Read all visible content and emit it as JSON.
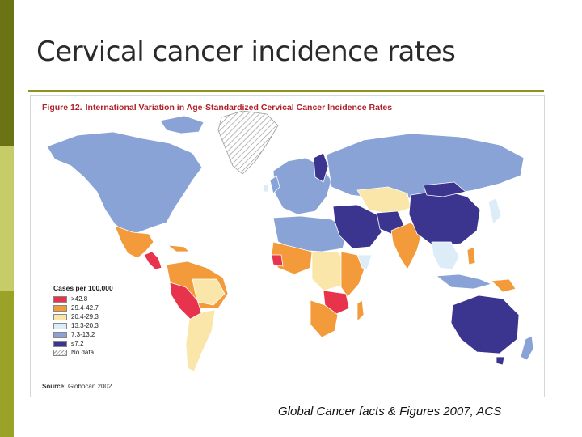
{
  "slide": {
    "title": "Cervical cancer incidence rates",
    "credit": "Global Cancer facts & Figures 2007, ACS"
  },
  "figure": {
    "number": "Figure 12.",
    "caption": "International Variation in Age-Standardized Cervical Cancer Incidence Rates",
    "source_label": "Source:",
    "source_value": "Globocan 2002"
  },
  "legend": {
    "title": "Cases per 100,000",
    "items": [
      {
        "label": ">42.8",
        "color": "#e8334d"
      },
      {
        "label": "29.4-42.7",
        "color": "#f39a3a"
      },
      {
        "label": "20.4-29.3",
        "color": "#f9e6a8"
      },
      {
        "label": "13.3-20.3",
        "color": "#dcedf7"
      },
      {
        "label": "7.3-13.2",
        "color": "#8aa3d6"
      },
      {
        "label": "≤7.2",
        "color": "#3c3590"
      },
      {
        "label": "No data",
        "color": "hatch"
      }
    ]
  },
  "colors": {
    "side_bar_top": "#6b7414",
    "side_bar_mid": "#c6cc68",
    "side_bar_bottom": "#9aa228",
    "title_rule": "#8e921e",
    "caption_text": "#b0202a",
    "ocean": "#ffffff"
  },
  "regions": [
    {
      "name": "north-america",
      "rate_class": "7.3-13.2"
    },
    {
      "name": "greenland",
      "rate_class": "no-data"
    },
    {
      "name": "mexico",
      "rate_class": "29.4-42.7"
    },
    {
      "name": "central-america",
      "rate_class": ">42.8"
    },
    {
      "name": "south-america",
      "rate_class": "29.4-42.7"
    },
    {
      "name": "peru-bolivia",
      "rate_class": ">42.8"
    },
    {
      "name": "southern-cone",
      "rate_class": "20.4-29.3"
    },
    {
      "name": "europe",
      "rate_class": "7.3-13.2"
    },
    {
      "name": "finland",
      "rate_class": "≤7.2"
    },
    {
      "name": "russia",
      "rate_class": "7.3-13.2"
    },
    {
      "name": "north-africa",
      "rate_class": "7.3-13.2"
    },
    {
      "name": "west-africa",
      "rate_class": "29.4-42.7"
    },
    {
      "name": "guinea",
      "rate_class": ">42.8"
    },
    {
      "name": "central-africa",
      "rate_class": "20.4-29.3"
    },
    {
      "name": "east-africa",
      "rate_class": "29.4-42.7"
    },
    {
      "name": "south-east-africa",
      "rate_class": ">42.8"
    },
    {
      "name": "southern-africa",
      "rate_class": "29.4-42.7"
    },
    {
      "name": "middle-east",
      "rate_class": "≤7.2"
    },
    {
      "name": "central-asia",
      "rate_class": "20.4-29.3"
    },
    {
      "name": "india",
      "rate_class": "29.4-42.7"
    },
    {
      "name": "china",
      "rate_class": "≤7.2"
    },
    {
      "name": "mongolia",
      "rate_class": "≤7.2"
    },
    {
      "name": "southeast-asia",
      "rate_class": "13.3-20.3"
    },
    {
      "name": "indonesia",
      "rate_class": "7.3-13.2"
    },
    {
      "name": "papua-new-guinea",
      "rate_class": "29.4-42.7"
    },
    {
      "name": "australia",
      "rate_class": "≤7.2"
    },
    {
      "name": "new-zealand",
      "rate_class": "7.3-13.2"
    }
  ]
}
